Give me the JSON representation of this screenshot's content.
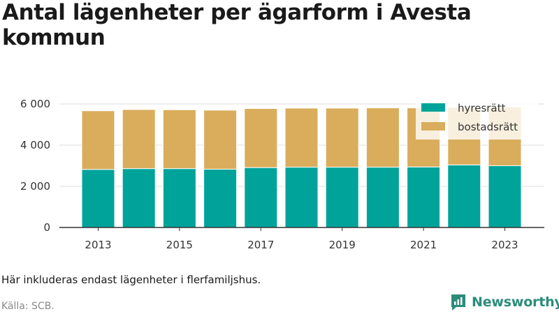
{
  "title": "Antal lägenheter per ägarform i Avesta kommun",
  "note": "Här inkluderas endast lägenheter i flerfamiljshus.",
  "source": "Källa: SCB.",
  "brand": {
    "name": "Newsworthy",
    "icon": "newsworthy-logo-icon",
    "color": "#2b8c7b"
  },
  "chart_data": {
    "type": "bar",
    "stacked": true,
    "categories": [
      2013,
      2014,
      2015,
      2016,
      2017,
      2018,
      2019,
      2020,
      2021,
      2022,
      2023
    ],
    "x_tick_labels": [
      "2013",
      "2015",
      "2017",
      "2019",
      "2021",
      "2023"
    ],
    "series": [
      {
        "name": "hyresrätt",
        "color": "#00a39a",
        "values": [
          2820,
          2860,
          2860,
          2830,
          2910,
          2930,
          2930,
          2930,
          2940,
          3040,
          3000
        ]
      },
      {
        "name": "bostadsrätt",
        "color": "#d9ad5b",
        "values": [
          2850,
          2870,
          2860,
          2870,
          2870,
          2870,
          2870,
          2880,
          2870,
          2800,
          2850
        ]
      }
    ],
    "ylim": [
      0,
      6000
    ],
    "y_ticks": [
      0,
      2000,
      4000,
      6000
    ],
    "y_tick_labels": [
      "0",
      "2 000",
      "4 000",
      "6 000"
    ],
    "grid": true,
    "legend_position": "top-right"
  }
}
